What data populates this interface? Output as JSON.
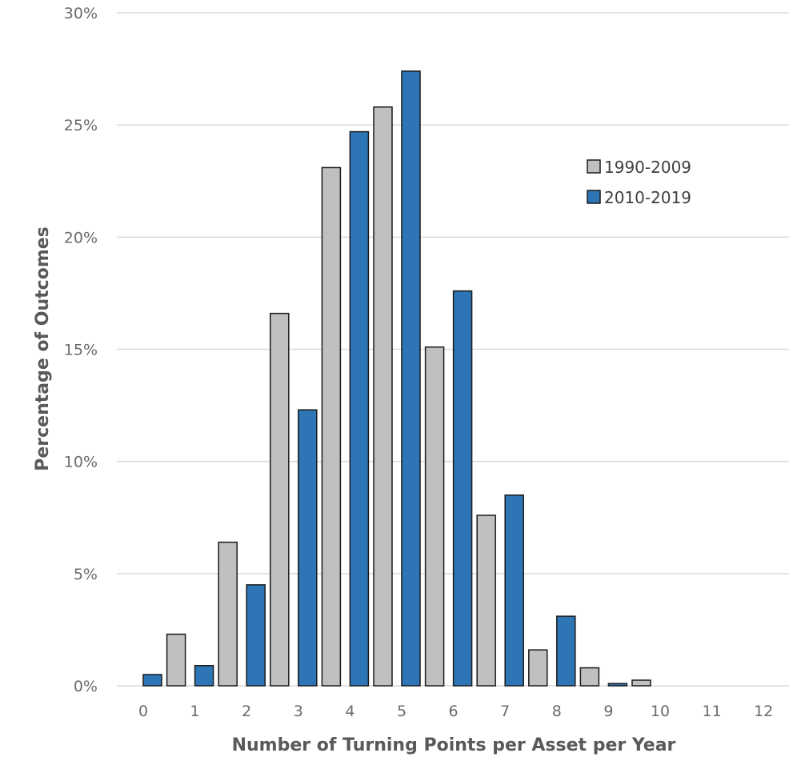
{
  "chart_data": {
    "type": "bar",
    "xlabel": "Number of Turning Points per Asset per Year",
    "ylabel": "Percentage of Outcomes",
    "categories": [
      "0",
      "1",
      "2",
      "3",
      "4",
      "5",
      "6",
      "7",
      "8",
      "9",
      "10",
      "11",
      "12"
    ],
    "series": [
      {
        "name": "1990-2009",
        "color": "#c0c0c0",
        "values": [
          0,
          2.3,
          6.4,
          16.6,
          23.1,
          25.8,
          15.1,
          7.6,
          1.6,
          0.8,
          0.25,
          0,
          0
        ]
      },
      {
        "name": "2010-2019",
        "color": "#2e75b6",
        "values": [
          0.5,
          0.9,
          4.5,
          12.3,
          24.7,
          27.4,
          17.6,
          8.5,
          3.1,
          0.1,
          0,
          0,
          0
        ]
      }
    ],
    "ylim": [
      0,
      30
    ],
    "yticks": [
      0,
      5,
      10,
      15,
      20,
      25,
      30
    ],
    "ytick_labels": [
      "0%",
      "5%",
      "10%",
      "15%",
      "20%",
      "25%",
      "30%"
    ],
    "grid": true,
    "legend_position": "top-right"
  }
}
